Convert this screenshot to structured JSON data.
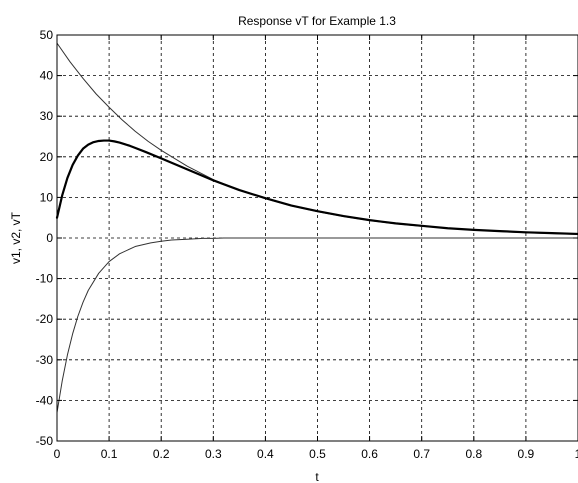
{
  "chart_data": {
    "type": "line",
    "title": "Response vT for Example 1.3",
    "xlabel": "t",
    "ylabel": "v1, v2, vT",
    "xlim": [
      0,
      1
    ],
    "ylim": [
      -50,
      50
    ],
    "xticks": [
      0,
      0.1,
      0.2,
      0.3,
      0.4,
      0.5,
      0.6,
      0.7,
      0.8,
      0.9,
      1
    ],
    "yticks": [
      -50,
      -40,
      -30,
      -20,
      -10,
      0,
      10,
      20,
      30,
      40,
      50
    ],
    "xtick_labels": [
      "0",
      "0.1",
      "0.2",
      "0.3",
      "0.4",
      "0.5",
      "0.6",
      "0.7",
      "0.8",
      "0.9",
      "1"
    ],
    "ytick_labels": [
      "-50",
      "-40",
      "-30",
      "-20",
      "-10",
      "0",
      "10",
      "20",
      "30",
      "40",
      "50"
    ],
    "grid": true,
    "series": [
      {
        "color": "#333333",
        "width": 1.0,
        "x": [
          0,
          0.025,
          0.05,
          0.075,
          0.1,
          0.125,
          0.15,
          0.175,
          0.2,
          0.25,
          0.3,
          0.35,
          0.4,
          0.45,
          0.5,
          0.55,
          0.6,
          0.65,
          0.7,
          0.75,
          0.8,
          0.85,
          0.9,
          0.95,
          1
        ],
        "values": [
          48.0,
          43.4,
          39.3,
          35.5,
          32.2,
          29.1,
          26.3,
          23.8,
          21.6,
          17.7,
          14.4,
          11.8,
          9.7,
          7.9,
          6.5,
          5.3,
          4.3,
          3.5,
          2.9,
          2.4,
          2.0,
          1.6,
          1.3,
          1.1,
          0.9
        ]
      },
      {
        "color": "#333333",
        "width": 1.0,
        "x": [
          0,
          0.01,
          0.02,
          0.03,
          0.04,
          0.05,
          0.06,
          0.08,
          0.1,
          0.12,
          0.15,
          0.18,
          0.2,
          0.22,
          0.25,
          0.28,
          0.3,
          0.32,
          0.35,
          1
        ],
        "values": [
          -43.0,
          -35.2,
          -28.8,
          -23.6,
          -19.3,
          -15.8,
          -12.9,
          -8.7,
          -5.8,
          -3.9,
          -2.1,
          -1.2,
          -0.8,
          -0.5,
          -0.3,
          -0.1,
          -0.1,
          0.0,
          0.0,
          0.0
        ]
      },
      {
        "color": "#000000",
        "width": 2.2,
        "x": [
          0,
          0.01,
          0.02,
          0.03,
          0.04,
          0.05,
          0.06,
          0.07,
          0.08,
          0.09,
          0.1,
          0.11,
          0.12,
          0.13,
          0.14,
          0.15,
          0.17,
          0.2,
          0.25,
          0.3,
          0.35,
          0.4,
          0.45,
          0.5,
          0.55,
          0.6,
          0.65,
          0.7,
          0.75,
          0.8,
          0.85,
          0.9,
          0.95,
          1
        ],
        "values": [
          5.0,
          10.5,
          14.8,
          18.0,
          20.3,
          22.0,
          23.0,
          23.6,
          23.9,
          24.0,
          24.0,
          23.8,
          23.5,
          23.1,
          22.7,
          22.2,
          21.2,
          19.6,
          16.9,
          14.2,
          11.8,
          9.8,
          8.0,
          6.6,
          5.4,
          4.4,
          3.6,
          3.0,
          2.4,
          2.0,
          1.7,
          1.4,
          1.2,
          1.0
        ]
      }
    ]
  }
}
